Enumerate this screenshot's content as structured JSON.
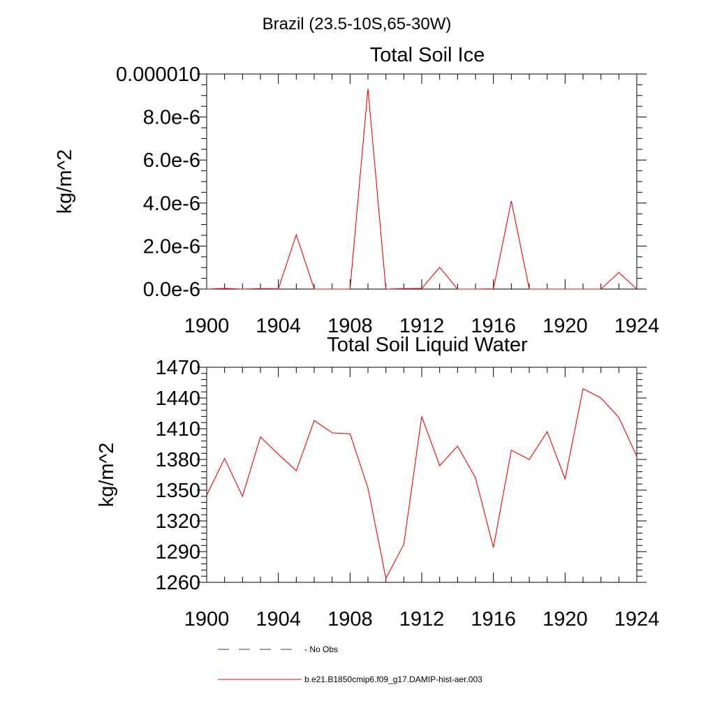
{
  "suptitle": "Brazil (23.5-10S,65-30W)",
  "chart_data": [
    {
      "type": "line",
      "title": "Total Soil Ice",
      "xlabel": "",
      "ylabel": "kg/m^2",
      "xlim": [
        1900,
        1924
      ],
      "ylim": [
        0,
        1e-05
      ],
      "xticks": [
        1900,
        1904,
        1908,
        1912,
        1916,
        1920,
        1924
      ],
      "xtick_labels": [
        "1900",
        "1904",
        "1908",
        "1912",
        "1916",
        "1920",
        "1924"
      ],
      "yticks": [
        0,
        2e-06,
        4e-06,
        6e-06,
        8e-06,
        1e-05
      ],
      "ytick_labels": [
        "0.0e-6",
        "2.0e-6",
        "4.0e-6",
        "6.0e-6",
        "8.0e-6",
        "0.000010"
      ],
      "y_minor_per_major": 4,
      "x_minor_per_major": 4,
      "grid": false,
      "x": [
        1900,
        1901,
        1902,
        1903,
        1904,
        1905,
        1906,
        1907,
        1908,
        1909,
        1910,
        1911,
        1912,
        1913,
        1914,
        1915,
        1916,
        1917,
        1918,
        1919,
        1920,
        1921,
        1922,
        1923,
        1924
      ],
      "series": [
        {
          "name": "b.e21.B1850cmip6.f09_g17.DAMIP-hist-aer.003",
          "color": "#ff0000",
          "values": [
            0,
            3e-08,
            0.0,
            2e-08,
            1e-08,
            2.53e-06,
            0,
            0,
            0,
            9.32e-06,
            0,
            2e-08,
            3e-08,
            1.01e-06,
            0,
            0,
            1e-08,
            4.1e-06,
            0,
            0,
            0,
            0,
            0,
            7.7e-07,
            0
          ]
        }
      ]
    },
    {
      "type": "line",
      "title": "Total Soil Liquid Water",
      "xlabel": "",
      "ylabel": "kg/m^2",
      "xlim": [
        1900,
        1924
      ],
      "ylim": [
        1260,
        1470
      ],
      "xticks": [
        1900,
        1904,
        1908,
        1912,
        1916,
        1920,
        1924
      ],
      "xtick_labels": [
        "1900",
        "1904",
        "1908",
        "1912",
        "1916",
        "1920",
        "1924"
      ],
      "yticks": [
        1260,
        1290,
        1320,
        1350,
        1380,
        1410,
        1440,
        1470
      ],
      "ytick_labels": [
        "1260",
        "1290",
        "1320",
        "1350",
        "1380",
        "1410",
        "1440",
        "1470"
      ],
      "y_minor_per_major": 5,
      "x_minor_per_major": 4,
      "grid": false,
      "x": [
        1900,
        1901,
        1902,
        1903,
        1904,
        1905,
        1906,
        1907,
        1908,
        1909,
        1910,
        1911,
        1912,
        1913,
        1914,
        1915,
        1916,
        1917,
        1918,
        1919,
        1920,
        1921,
        1922,
        1923,
        1924
      ],
      "series": [
        {
          "name": "b.e21.B1850cmip6.f09_g17.DAMIP-hist-aer.003",
          "color": "#ff0000",
          "values": [
            1345,
            1381,
            1344,
            1402,
            1385,
            1369,
            1418,
            1406,
            1405,
            1352,
            1264,
            1297,
            1422,
            1374,
            1393,
            1362,
            1294,
            1389,
            1380,
            1407,
            1361,
            1449,
            1440,
            1421,
            1383
          ]
        }
      ]
    }
  ],
  "legend": {
    "placement": "bottom-center",
    "items": [
      {
        "label": "No Obs",
        "color": "#3a3a7a",
        "style": "dashed"
      },
      {
        "label": "b.e21.B1850cmip6.f09_g17.DAMIP-hist-aer.003",
        "color": "#ff0000",
        "style": "solid"
      }
    ]
  }
}
